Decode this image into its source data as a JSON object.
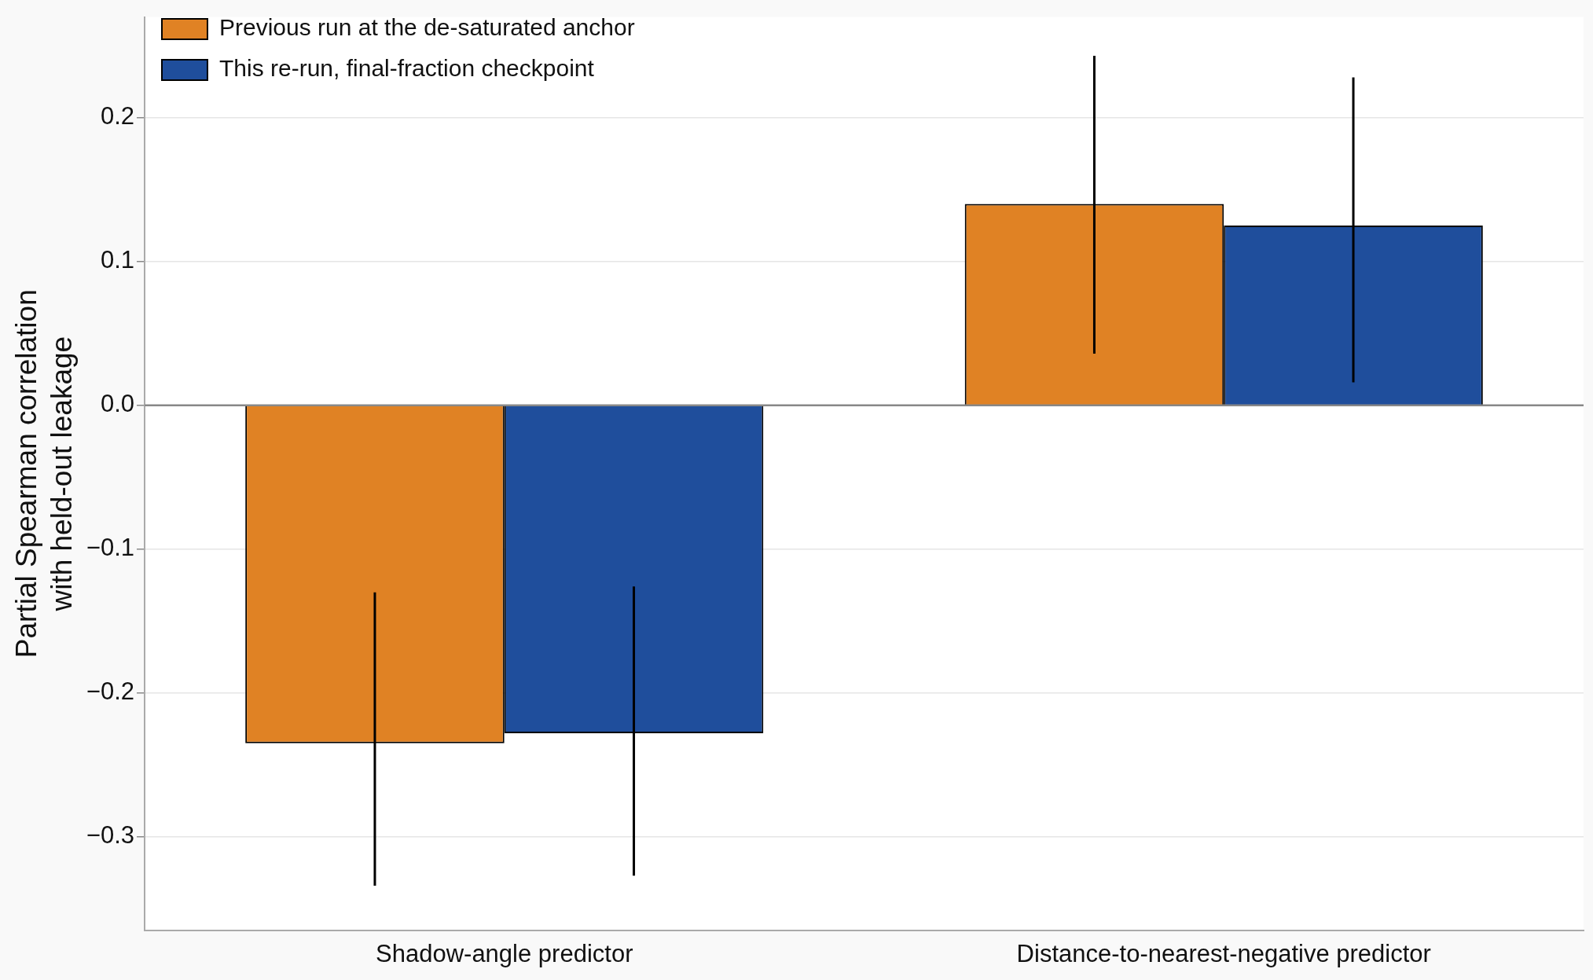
{
  "chart_data": {
    "type": "bar",
    "ylabel": "Partial Spearman correlation\nwith held-out leakage",
    "categories": [
      "Shadow-angle predictor",
      "Distance-to-nearest-negative predictor"
    ],
    "series": [
      {
        "name": "Previous run at the de-saturated anchor",
        "color": "#e08224",
        "values": [
          -0.235,
          0.14
        ],
        "errors": [
          [
            -0.334,
            -0.13
          ],
          [
            0.036,
            0.243
          ]
        ]
      },
      {
        "name": "This re-run, final-fraction checkpoint",
        "color": "#1f4e9c",
        "values": [
          -0.228,
          0.125
        ],
        "errors": [
          [
            -0.327,
            -0.126
          ],
          [
            0.016,
            0.228
          ]
        ]
      }
    ],
    "ylim": [
      -0.365,
      0.27
    ],
    "yticks": [
      -0.3,
      -0.2,
      -0.1,
      {
        "value": 0,
        "label": "0.0"
      },
      0.2,
      0.1
    ],
    "ref_lines": [
      {
        "axis": "y",
        "value": 0,
        "color": "#888888"
      }
    ],
    "grid": "y",
    "legend": "top left"
  }
}
